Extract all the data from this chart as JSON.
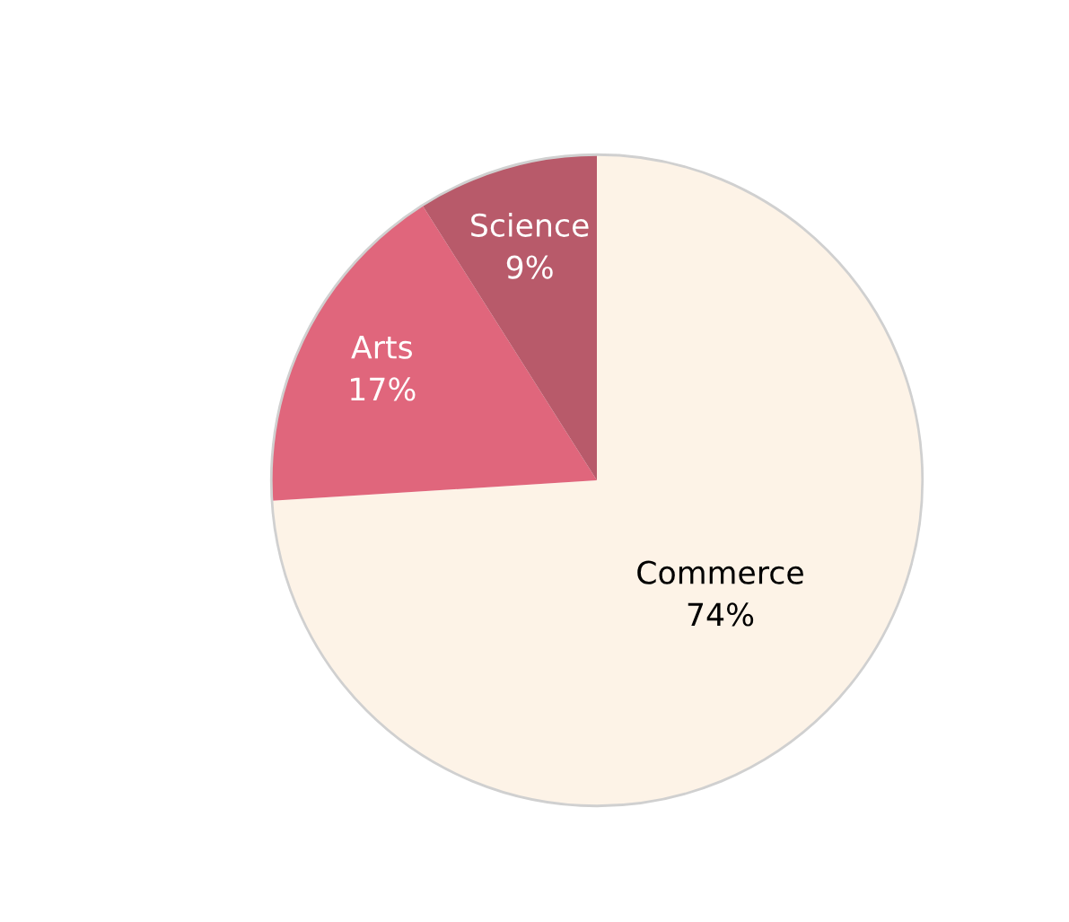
{
  "chart_data": {
    "type": "pie",
    "categories": [
      "Commerce",
      "Arts",
      "Science"
    ],
    "values": [
      74,
      17,
      9
    ],
    "colors": [
      "#fdf3e7",
      "#e0667c",
      "#b85a6a"
    ],
    "value_labels": [
      "74%",
      "17%",
      "9%"
    ]
  }
}
